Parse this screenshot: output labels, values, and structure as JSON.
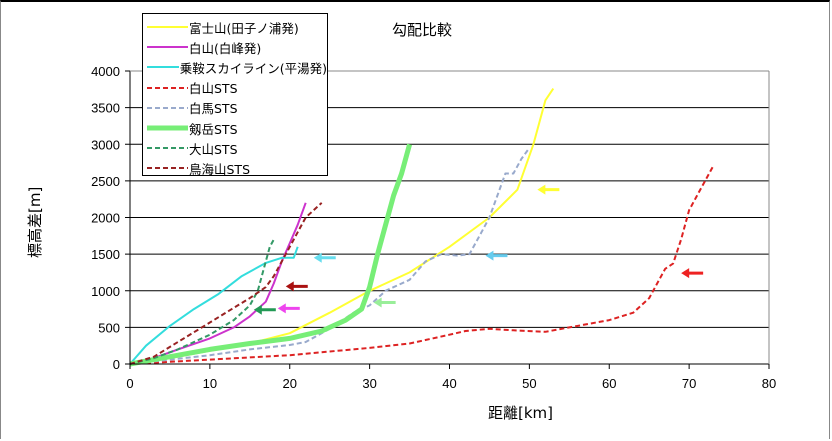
{
  "chart_data": {
    "type": "line",
    "title": "勾配比較",
    "xlabel": "距離[km]",
    "ylabel": "標高差[m]",
    "xlim": [
      0,
      80
    ],
    "ylim": [
      0,
      4000
    ],
    "x_ticks": [
      0,
      10,
      20,
      30,
      40,
      50,
      60,
      70,
      80
    ],
    "y_ticks": [
      0,
      500,
      1000,
      1500,
      2000,
      2500,
      3000,
      3500,
      4000
    ],
    "grid": "horizontal",
    "legend_position": "upper-left",
    "series": [
      {
        "name": "富士山(田子ノ浦発)",
        "color": "#ffff33",
        "style": "solid",
        "width": 2,
        "points": [
          [
            0,
            0
          ],
          [
            5,
            80
          ],
          [
            10,
            180
          ],
          [
            15,
            280
          ],
          [
            20,
            420
          ],
          [
            25,
            700
          ],
          [
            30,
            1000
          ],
          [
            35,
            1250
          ],
          [
            40,
            1600
          ],
          [
            45,
            2000
          ],
          [
            48.5,
            2380
          ],
          [
            50.5,
            3000
          ],
          [
            52,
            3600
          ],
          [
            53,
            3760
          ]
        ]
      },
      {
        "name": "白山(白峰発)",
        "color": "#cc33cc",
        "style": "solid",
        "width": 2,
        "points": [
          [
            0,
            0
          ],
          [
            3,
            80
          ],
          [
            6,
            200
          ],
          [
            10,
            350
          ],
          [
            13,
            500
          ],
          [
            15,
            650
          ],
          [
            17,
            850
          ],
          [
            18,
            1100
          ],
          [
            19,
            1400
          ],
          [
            20,
            1650
          ],
          [
            21,
            1900
          ],
          [
            22,
            2200
          ]
        ]
      },
      {
        "name": "乗鞍スカイライン(平湯発)",
        "color": "#33dddd",
        "style": "solid",
        "width": 2,
        "points": [
          [
            0,
            0
          ],
          [
            2,
            250
          ],
          [
            5,
            520
          ],
          [
            8,
            750
          ],
          [
            11,
            950
          ],
          [
            14,
            1200
          ],
          [
            17,
            1380
          ],
          [
            19,
            1450
          ],
          [
            20.5,
            1450
          ],
          [
            21,
            1600
          ]
        ]
      },
      {
        "name": "白山STS",
        "color": "#dd2222",
        "style": "dashed",
        "width": 2,
        "points": [
          [
            0,
            0
          ],
          [
            10,
            60
          ],
          [
            20,
            120
          ],
          [
            25,
            170
          ],
          [
            30,
            220
          ],
          [
            35,
            280
          ],
          [
            40,
            400
          ],
          [
            42,
            450
          ],
          [
            45,
            480
          ],
          [
            48,
            460
          ],
          [
            52,
            440
          ],
          [
            55,
            500
          ],
          [
            60,
            600
          ],
          [
            63,
            700
          ],
          [
            65,
            900
          ],
          [
            66,
            1100
          ],
          [
            67,
            1300
          ],
          [
            68,
            1370
          ],
          [
            69,
            1700
          ],
          [
            70,
            2100
          ],
          [
            71,
            2300
          ],
          [
            72,
            2500
          ],
          [
            73,
            2700
          ]
        ]
      },
      {
        "name": "白馬STS",
        "color": "#99aacc",
        "style": "dashed",
        "width": 2,
        "points": [
          [
            0,
            0
          ],
          [
            5,
            60
          ],
          [
            10,
            120
          ],
          [
            15,
            200
          ],
          [
            20,
            260
          ],
          [
            22,
            300
          ],
          [
            25,
            480
          ],
          [
            28,
            700
          ],
          [
            30,
            800
          ],
          [
            32,
            1000
          ],
          [
            35,
            1150
          ],
          [
            37,
            1400
          ],
          [
            39,
            1500
          ],
          [
            41,
            1480
          ],
          [
            42.5,
            1500
          ],
          [
            44,
            1800
          ],
          [
            45,
            2000
          ],
          [
            46,
            2300
          ],
          [
            47,
            2600
          ],
          [
            48,
            2600
          ],
          [
            49,
            2800
          ],
          [
            50,
            2950
          ]
        ]
      },
      {
        "name": "剱岳STS",
        "color": "#77ee77",
        "style": "solid",
        "width": 5,
        "points": [
          [
            0,
            0
          ],
          [
            5,
            100
          ],
          [
            10,
            200
          ],
          [
            15,
            280
          ],
          [
            20,
            350
          ],
          [
            24,
            450
          ],
          [
            27,
            600
          ],
          [
            29,
            750
          ],
          [
            30,
            1050
          ],
          [
            31,
            1500
          ],
          [
            32,
            1900
          ],
          [
            33,
            2300
          ],
          [
            34,
            2600
          ],
          [
            35,
            3000
          ]
        ]
      },
      {
        "name": "大山STS",
        "color": "#339966",
        "style": "dashed",
        "width": 2,
        "points": [
          [
            0,
            0
          ],
          [
            3,
            80
          ],
          [
            6,
            200
          ],
          [
            10,
            400
          ],
          [
            13,
            600
          ],
          [
            15,
            800
          ],
          [
            16,
            1000
          ],
          [
            16.5,
            1200
          ],
          [
            17,
            1400
          ],
          [
            17.5,
            1600
          ],
          [
            18,
            1700
          ]
        ]
      },
      {
        "name": "鳥海山STS",
        "color": "#992222",
        "style": "dashed",
        "width": 2,
        "points": [
          [
            0,
            0
          ],
          [
            3,
            100
          ],
          [
            6,
            300
          ],
          [
            9,
            500
          ],
          [
            12,
            700
          ],
          [
            15,
            900
          ],
          [
            17,
            1050
          ],
          [
            18,
            1200
          ],
          [
            19,
            1400
          ],
          [
            20,
            1600
          ],
          [
            21,
            1800
          ],
          [
            22,
            2000
          ],
          [
            23,
            2100
          ],
          [
            24,
            2200
          ]
        ]
      }
    ],
    "annotations": [
      {
        "type": "arrow",
        "color": "#ffff33",
        "x": 50.5,
        "y": 2380
      },
      {
        "type": "arrow",
        "color": "#66ccee",
        "x": 44,
        "y": 1480
      },
      {
        "type": "arrow",
        "color": "#66ddee",
        "x": 22.5,
        "y": 1450
      },
      {
        "type": "arrow",
        "color": "#aa1111",
        "x": 19,
        "y": 1060
      },
      {
        "type": "arrow",
        "color": "#ee44ee",
        "x": 18,
        "y": 760
      },
      {
        "type": "arrow",
        "color": "#229955",
        "x": 15,
        "y": 740
      },
      {
        "type": "arrow",
        "color": "#99ee99",
        "x": 30,
        "y": 840
      },
      {
        "type": "arrow",
        "color": "#ee2222",
        "x": 68.5,
        "y": 1240
      }
    ]
  }
}
